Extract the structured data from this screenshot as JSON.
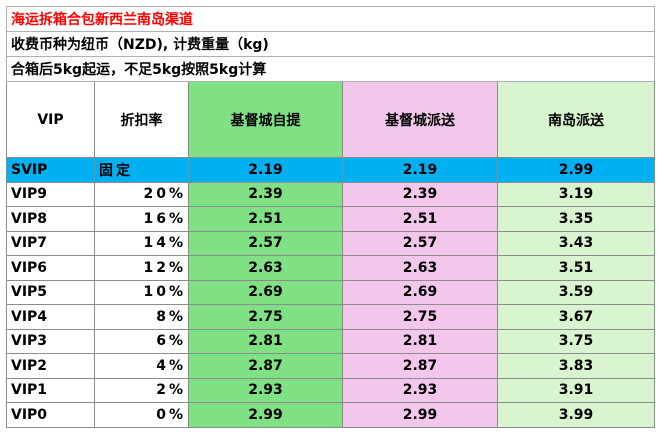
{
  "info": {
    "title": "海运拆箱合包新西兰南岛渠道",
    "currency_line": "收费币种为纽币（NZD), 计费重量（kg)",
    "min_weight_line": "合箱后5kg起运，不足5kg按照5kg计算"
  },
  "header": {
    "vip": "VIP",
    "discount": "折扣率",
    "col_pickup": "基督城自提",
    "col_delivery": "基督城派送",
    "col_south": "南岛派送"
  },
  "colors": {
    "green": "#7fe183",
    "pink": "#f2c7eb",
    "light_green": "#d9f5cf",
    "svip_blue": "#00b0f0",
    "title_red": "#ff0000"
  },
  "rows": [
    {
      "level": "SVIP",
      "discount": "固定",
      "pickup": "2.19",
      "delivery": "2.19",
      "south": "2.99"
    },
    {
      "level": "VIP9",
      "discount": "20%",
      "pickup": "2.39",
      "delivery": "2.39",
      "south": "3.19"
    },
    {
      "level": "VIP8",
      "discount": "16%",
      "pickup": "2.51",
      "delivery": "2.51",
      "south": "3.35"
    },
    {
      "level": "VIP7",
      "discount": "14%",
      "pickup": "2.57",
      "delivery": "2.57",
      "south": "3.43"
    },
    {
      "level": "VIP6",
      "discount": "12%",
      "pickup": "2.63",
      "delivery": "2.63",
      "south": "3.51"
    },
    {
      "level": "VIP5",
      "discount": "10%",
      "pickup": "2.69",
      "delivery": "2.69",
      "south": "3.59"
    },
    {
      "level": "VIP4",
      "discount": "8%",
      "pickup": "2.75",
      "delivery": "2.75",
      "south": "3.67"
    },
    {
      "level": "VIP3",
      "discount": "6%",
      "pickup": "2.81",
      "delivery": "2.81",
      "south": "3.75"
    },
    {
      "level": "VIP2",
      "discount": "4%",
      "pickup": "2.87",
      "delivery": "2.87",
      "south": "3.83"
    },
    {
      "level": "VIP1",
      "discount": "2%",
      "pickup": "2.93",
      "delivery": "2.93",
      "south": "3.91"
    },
    {
      "level": "VIP0",
      "discount": "0%",
      "pickup": "2.99",
      "delivery": "2.99",
      "south": "3.99"
    }
  ]
}
